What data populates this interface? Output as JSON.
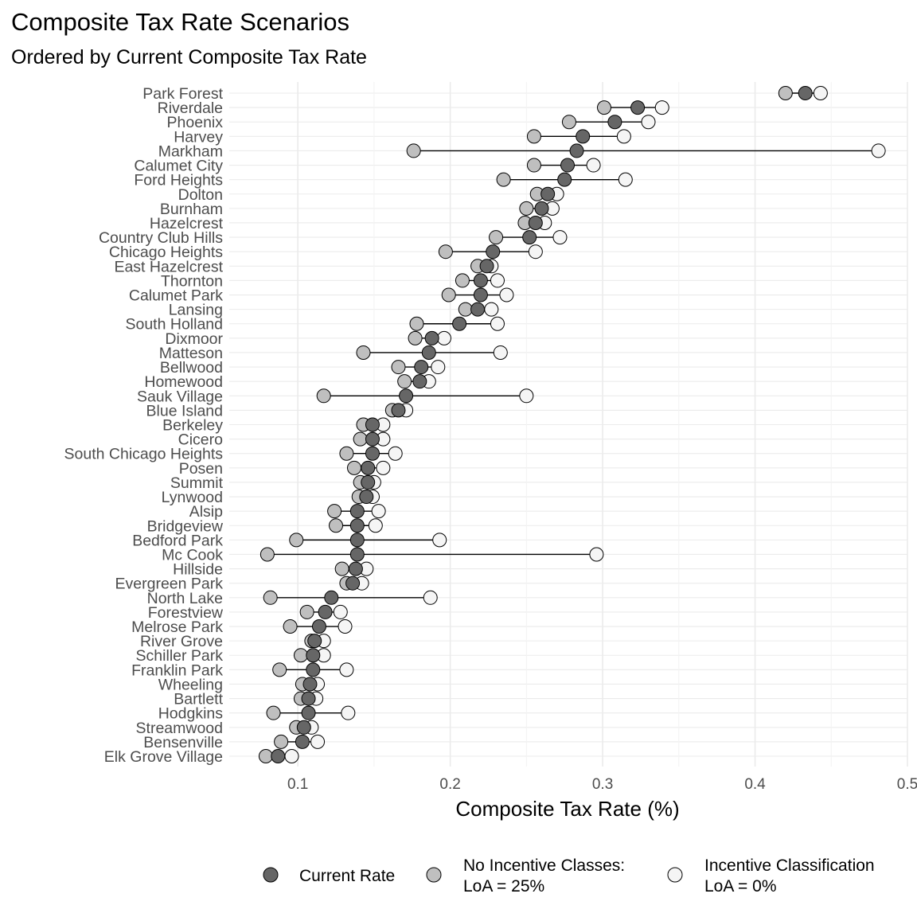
{
  "title": "Composite Tax Rate Scenarios",
  "subtitle": "Ordered by Current Composite Tax Rate",
  "colors": {
    "current": "#666666",
    "no_incentive": "#bfbfbf",
    "incentive": "#f5f5f5",
    "stroke": "#000000",
    "grid": "#ebebeb"
  },
  "chart_data": {
    "type": "dot-range",
    "title": "Composite Tax Rate Scenarios",
    "subtitle": "Ordered by Current Composite Tax Rate",
    "xlabel": "Composite Tax Rate (%)",
    "ylabel": "",
    "xlim": [
      0.055,
      0.5
    ],
    "xticks": [
      0.1,
      0.2,
      0.3,
      0.4,
      0.5
    ],
    "xtick_labels": [
      "0.1",
      "0.2",
      "0.3",
      "0.4",
      "0.5"
    ],
    "grid": true,
    "legend_position": "bottom",
    "legend": [
      {
        "key": "current",
        "label": "Current Rate"
      },
      {
        "key": "no_incentive",
        "label": "No Incentive Classes:\nLoA = 25%"
      },
      {
        "key": "incentive",
        "label": "Incentive Classification\nLoA = 0%"
      }
    ],
    "categories": [
      "Park Forest",
      "Riverdale",
      "Phoenix",
      "Harvey",
      "Markham",
      "Calumet City",
      "Ford Heights",
      "Dolton",
      "Burnham",
      "Hazelcrest",
      "Country Club Hills",
      "Chicago Heights",
      "East Hazelcrest",
      "Thornton",
      "Calumet Park",
      "Lansing",
      "South Holland",
      "Dixmoor",
      "Matteson",
      "Bellwood",
      "Homewood",
      "Sauk Village",
      "Blue Island",
      "Berkeley",
      "Cicero",
      "South Chicago Heights",
      "Posen",
      "Summit",
      "Lynwood",
      "Alsip",
      "Bridgeview",
      "Bedford Park",
      "Mc Cook",
      "Hillside",
      "Evergreen Park",
      "North Lake",
      "Forestview",
      "Melrose Park",
      "River Grove",
      "Schiller Park",
      "Franklin Park",
      "Wheeling",
      "Bartlett",
      "Hodgkins",
      "Streamwood",
      "Bensenville",
      "Elk Grove Village"
    ],
    "series": [
      {
        "name": "Current Rate",
        "key": "current",
        "values": [
          0.433,
          0.323,
          0.308,
          0.287,
          0.283,
          0.277,
          0.275,
          0.264,
          0.26,
          0.256,
          0.252,
          0.228,
          0.224,
          0.22,
          0.22,
          0.218,
          0.206,
          0.188,
          0.186,
          0.181,
          0.18,
          0.171,
          0.166,
          0.149,
          0.149,
          0.149,
          0.146,
          0.146,
          0.145,
          0.139,
          0.139,
          0.139,
          0.139,
          0.138,
          0.136,
          0.122,
          0.118,
          0.114,
          0.111,
          0.11,
          0.11,
          0.108,
          0.107,
          0.107,
          0.104,
          0.103,
          0.087
        ]
      },
      {
        "name": "No Incentive Classes: LoA = 25%",
        "key": "no_incentive",
        "values": [
          0.42,
          0.301,
          0.278,
          0.255,
          0.176,
          0.255,
          0.235,
          0.257,
          0.25,
          0.249,
          0.23,
          0.197,
          0.218,
          0.208,
          0.199,
          0.21,
          0.178,
          0.177,
          0.143,
          0.166,
          0.17,
          0.117,
          0.162,
          0.143,
          0.141,
          0.132,
          0.137,
          0.141,
          0.14,
          0.124,
          0.125,
          0.099,
          0.08,
          0.129,
          0.132,
          0.082,
          0.106,
          0.095,
          0.109,
          0.102,
          0.088,
          0.103,
          0.102,
          0.084,
          0.099,
          0.089,
          0.079
        ]
      },
      {
        "name": "Incentive Classification: LoA = 0%",
        "key": "incentive",
        "values": [
          0.443,
          0.339,
          0.33,
          0.314,
          0.481,
          0.294,
          0.315,
          0.27,
          0.267,
          0.262,
          0.272,
          0.256,
          0.227,
          0.231,
          0.237,
          0.227,
          0.231,
          0.196,
          0.233,
          0.192,
          0.186,
          0.25,
          0.171,
          0.156,
          0.156,
          0.164,
          0.156,
          0.15,
          0.149,
          0.153,
          0.151,
          0.193,
          0.296,
          0.145,
          0.142,
          0.187,
          0.128,
          0.131,
          0.117,
          0.117,
          0.132,
          0.113,
          0.112,
          0.133,
          0.109,
          0.113,
          0.096
        ]
      }
    ]
  }
}
